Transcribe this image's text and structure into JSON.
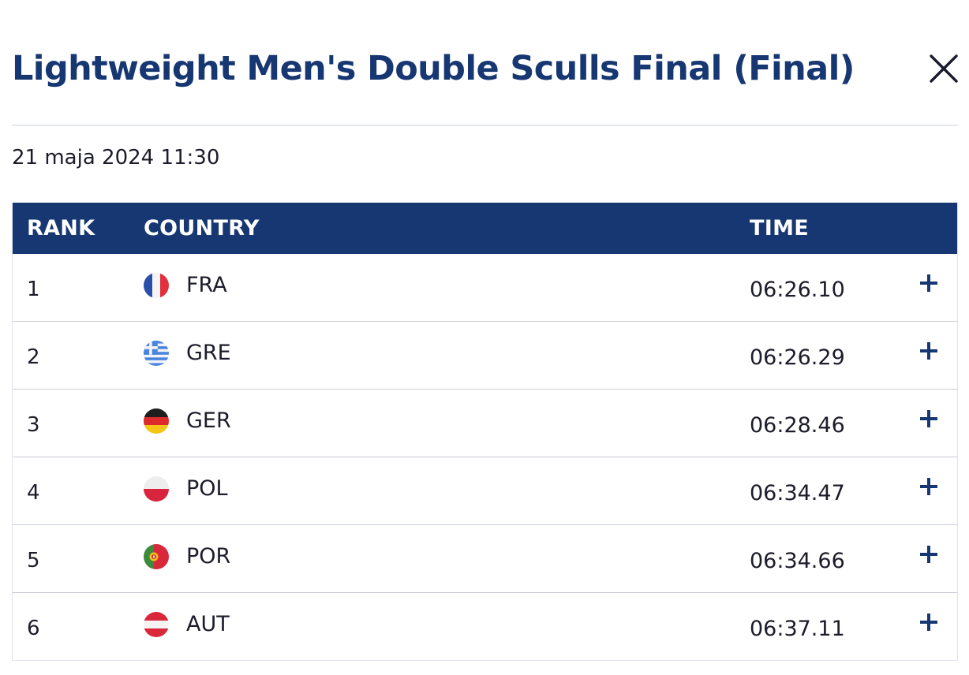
{
  "header": {
    "title": "Lightweight Men's Double Sculls Final (Final)",
    "close_icon": "close-icon"
  },
  "event": {
    "datetime": "21 maja 2024 11:30"
  },
  "table": {
    "columns": {
      "rank": "RANK",
      "country": "COUNTRY",
      "time": "TIME"
    },
    "rows": [
      {
        "rank": "1",
        "flag": "france-flag-icon",
        "code": "FRA",
        "time": "06:26.10"
      },
      {
        "rank": "2",
        "flag": "greece-flag-icon",
        "code": "GRE",
        "time": "06:26.29"
      },
      {
        "rank": "3",
        "flag": "germany-flag-icon",
        "code": "GER",
        "time": "06:28.46"
      },
      {
        "rank": "4",
        "flag": "poland-flag-icon",
        "code": "POL",
        "time": "06:34.47"
      },
      {
        "rank": "5",
        "flag": "portugal-flag-icon",
        "code": "POR",
        "time": "06:34.66"
      },
      {
        "rank": "6",
        "flag": "austria-flag-icon",
        "code": "AUT",
        "time": "06:37.11"
      }
    ],
    "expand_icon": "plus-icon"
  },
  "colors": {
    "primary": "#173773",
    "header_text": "#ffffff",
    "divider": "#e4e7ec",
    "row_border": "#c9ccd6"
  }
}
